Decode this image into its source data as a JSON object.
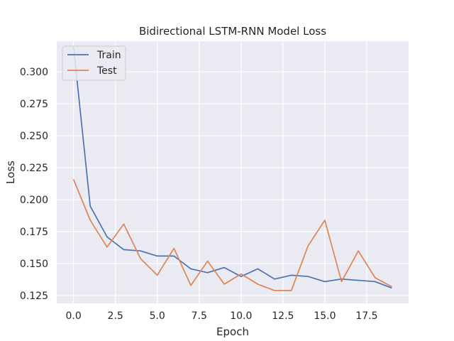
{
  "chart_data": {
    "type": "line",
    "title": "Bidirectional LSTM-RNN Model Loss",
    "xlabel": "Epoch",
    "ylabel": "Loss",
    "xlim": [
      -1,
      20
    ],
    "ylim": [
      0.119,
      0.324
    ],
    "xticks": [
      0,
      2.5,
      5,
      7.5,
      10,
      12.5,
      15,
      17.5
    ],
    "xtick_labels": [
      "0.0",
      "2.5",
      "5.0",
      "7.5",
      "10.0",
      "12.5",
      "15.0",
      "17.5"
    ],
    "yticks": [
      0.125,
      0.15,
      0.175,
      0.2,
      0.225,
      0.25,
      0.275,
      0.3
    ],
    "ytick_labels": [
      "0.125",
      "0.150",
      "0.175",
      "0.200",
      "0.225",
      "0.250",
      "0.275",
      "0.300"
    ],
    "grid": true,
    "legend_position": "top-left",
    "x": [
      0,
      1,
      2,
      3,
      4,
      5,
      6,
      7,
      8,
      9,
      10,
      11,
      12,
      13,
      14,
      15,
      16,
      17,
      18,
      19
    ],
    "series": [
      {
        "name": "Train",
        "color": "#4c72b0",
        "values": [
          0.32,
          0.195,
          0.171,
          0.161,
          0.16,
          0.156,
          0.156,
          0.146,
          0.143,
          0.147,
          0.14,
          0.146,
          0.138,
          0.141,
          0.14,
          0.136,
          0.138,
          0.137,
          0.136,
          0.131
        ]
      },
      {
        "name": "Test",
        "color": "#dd8452",
        "values": [
          0.216,
          0.184,
          0.163,
          0.181,
          0.154,
          0.141,
          0.162,
          0.133,
          0.152,
          0.134,
          0.142,
          0.134,
          0.129,
          0.129,
          0.164,
          0.184,
          0.136,
          0.16,
          0.139,
          0.132
        ]
      }
    ]
  }
}
